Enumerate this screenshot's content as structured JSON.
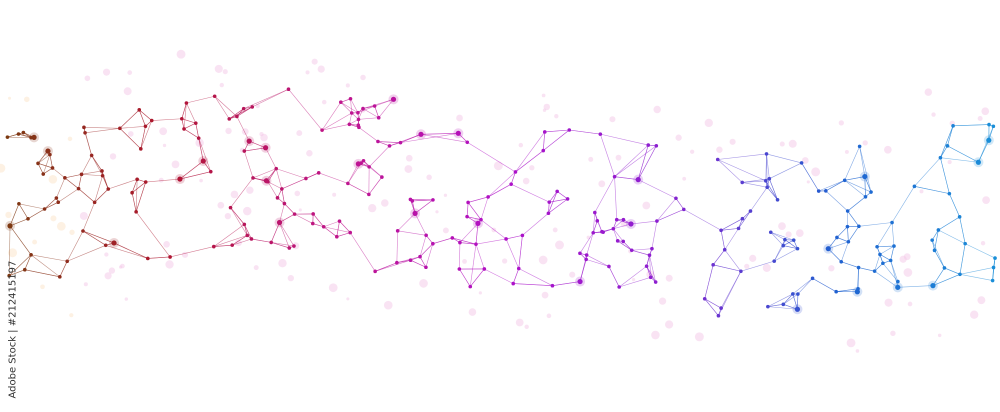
{
  "watermark": {
    "text": "Adobe Stock | #212415197"
  },
  "colors": {
    "gradient": [
      "#7a3b10",
      "#b01530",
      "#c0158a",
      "#b010c8",
      "#8a20d0",
      "#2060d0",
      "#1a90d8"
    ],
    "faint_dots": "#f3c8e8"
  }
}
